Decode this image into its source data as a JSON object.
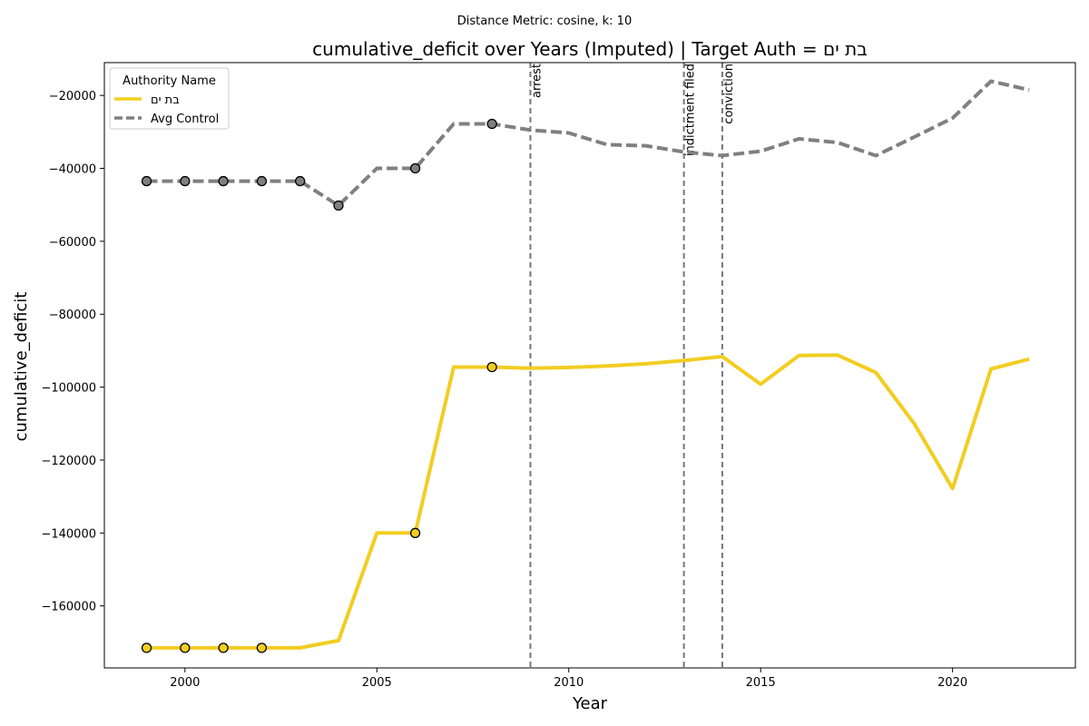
{
  "chart_data": {
    "type": "line",
    "suptitle": "Distance Metric: cosine, k: 10",
    "title": "cumulative_deficit over Years (Imputed) | Target Auth = בת ים",
    "xlabel": "Year",
    "ylabel": "cumulative_deficit",
    "xlim": [
      1997.9,
      2023.2
    ],
    "ylim": [
      -177000,
      -11000
    ],
    "xticks": [
      2000,
      2005,
      2010,
      2015,
      2020
    ],
    "yticks": [
      -160000,
      -140000,
      -120000,
      -100000,
      -80000,
      -60000,
      -40000,
      -20000
    ],
    "grid": false,
    "legend": {
      "title": "Authority Name",
      "placement": "top-left",
      "entries": [
        "בת ים",
        "Avg Control"
      ]
    },
    "events": [
      {
        "x": 2009,
        "label": "arrest"
      },
      {
        "x": 2013,
        "label": "indictment filed"
      },
      {
        "x": 2014,
        "label": "conviction"
      }
    ],
    "x": [
      1999,
      2000,
      2001,
      2002,
      2003,
      2004,
      2005,
      2006,
      2007,
      2008,
      2009,
      2010,
      2011,
      2012,
      2013,
      2014,
      2015,
      2016,
      2017,
      2018,
      2019,
      2020,
      2021,
      2022
    ],
    "series": [
      {
        "name": "בת ים",
        "color": "#f2cd22",
        "style": "solid",
        "values": [
          -171500,
          -171500,
          -171500,
          -171500,
          -171500,
          -169500,
          -140000,
          -140000,
          -94500,
          -94500,
          -94800,
          -94600,
          -94200,
          -93600,
          -92700,
          -91600,
          -99200,
          -91300,
          -91200,
          -96000,
          -110000,
          -127800,
          -95000,
          -92300
        ],
        "imputed_years": [
          1999,
          2000,
          2001,
          2002,
          2006,
          2008
        ]
      },
      {
        "name": "Avg Control",
        "color": "#808080",
        "style": "dashed",
        "values": [
          -43500,
          -43500,
          -43500,
          -43500,
          -43500,
          -50200,
          -40000,
          -40000,
          -27800,
          -27800,
          -29500,
          -30300,
          -33500,
          -33800,
          -35500,
          -36500,
          -35300,
          -31900,
          -32900,
          -36500,
          -31400,
          -26200,
          -16100,
          -18500
        ],
        "imputed_years": [
          1999,
          2000,
          2001,
          2002,
          2003,
          2004,
          2006,
          2008
        ]
      }
    ]
  }
}
